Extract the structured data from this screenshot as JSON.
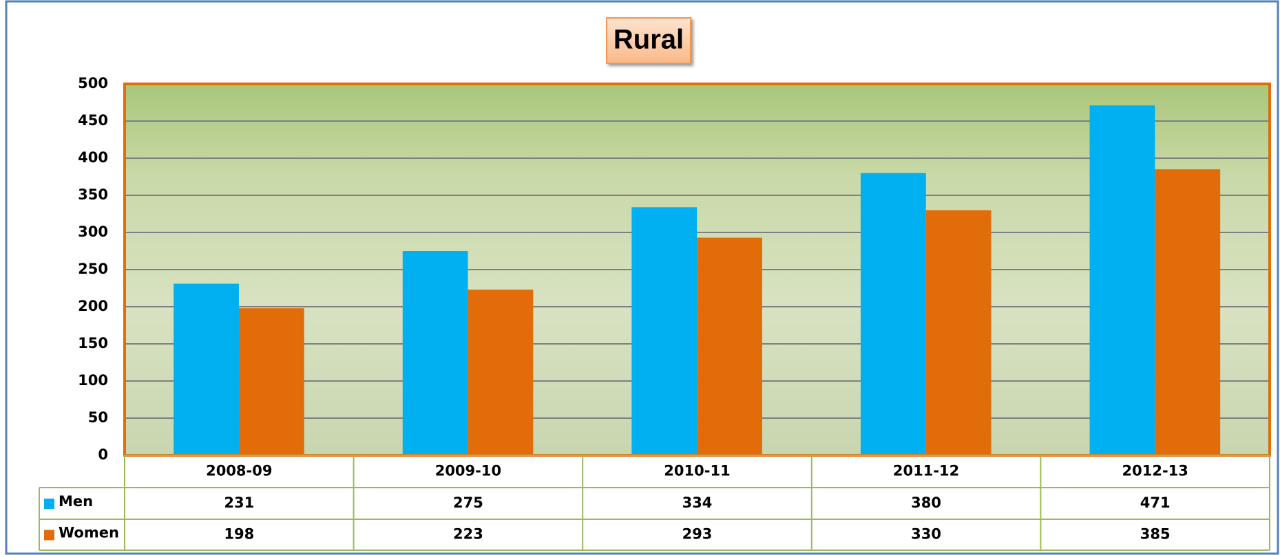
{
  "chart_data": {
    "type": "bar",
    "title": "Rural",
    "categories": [
      "2008-09",
      "2009-10",
      "2010-11",
      "2011-12",
      "2012-13"
    ],
    "series": [
      {
        "name": "Men",
        "color": "#00b0f0",
        "values": [
          231,
          275,
          334,
          380,
          471
        ]
      },
      {
        "name": "Women",
        "color": "#e36c0a",
        "values": [
          198,
          223,
          293,
          330,
          385
        ]
      }
    ],
    "ylim": [
      0,
      500
    ],
    "yticks": [
      0,
      50,
      100,
      150,
      200,
      250,
      300,
      350,
      400,
      450,
      500
    ],
    "grid": true
  }
}
